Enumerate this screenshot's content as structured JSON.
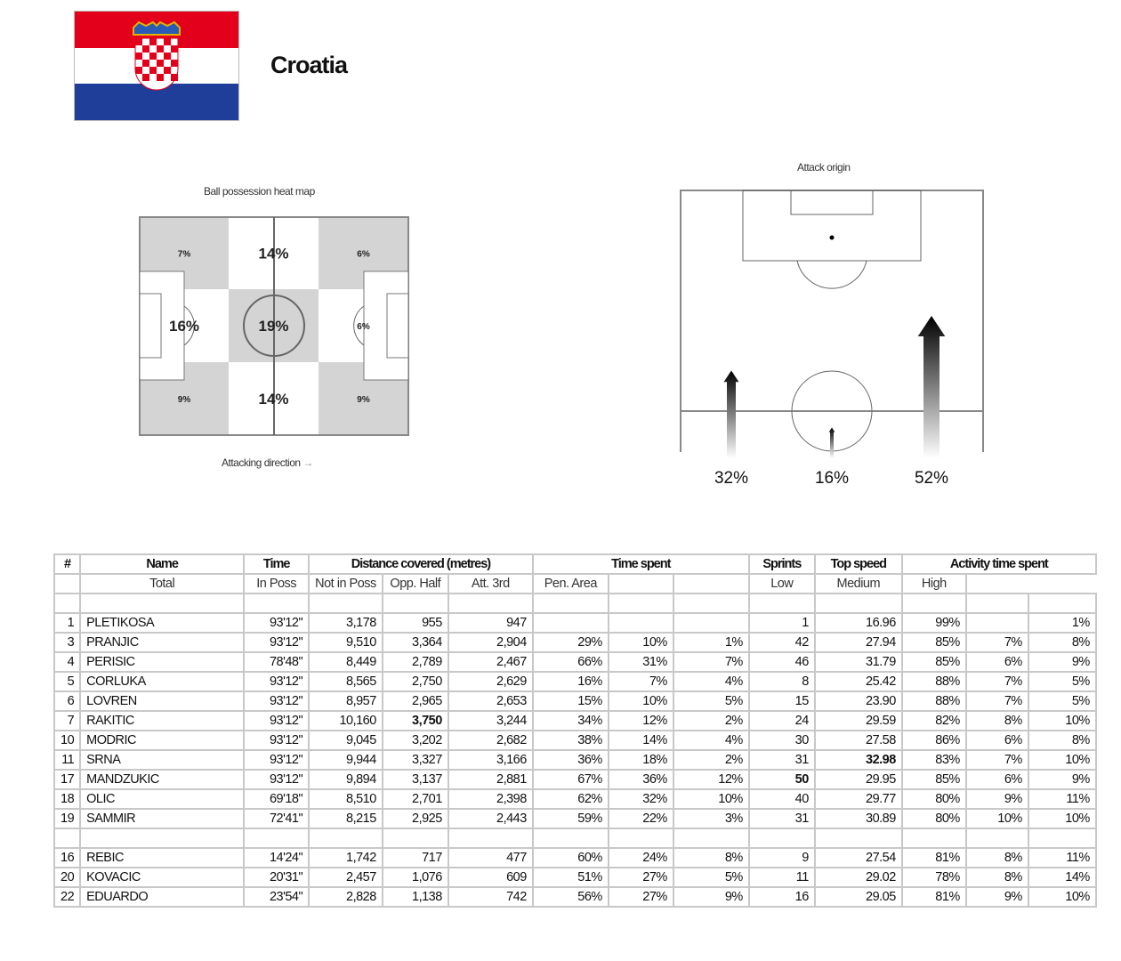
{
  "header": {
    "country": "Croatia",
    "flag_colors": [
      "#e2001a",
      "#ffffff",
      "#1f3e9a"
    ]
  },
  "heatmap": {
    "title": "Ball possession heat map",
    "cells": [
      "7%",
      "14%",
      "6%",
      "16%",
      "19%",
      "6%",
      "9%",
      "14%",
      "9%"
    ],
    "footer": "Attacking direction",
    "arrow": "→"
  },
  "attack": {
    "title": "Attack origin",
    "labels": [
      "32%",
      "16%",
      "52%"
    ],
    "values": [
      32,
      16,
      52
    ]
  },
  "table": {
    "headers": {
      "num": "#",
      "name": "Name",
      "time": "Time",
      "distance": "Distance covered (metres)",
      "time_spent": "Time spent",
      "sprints": "Sprints",
      "top_speed": "Top speed",
      "activity": "Activity time spent"
    },
    "subheaders": [
      "Total",
      "In Poss",
      "Not in Poss",
      "Opp. Half",
      "Att. 3rd",
      "Pen. Area",
      "Low",
      "Medium",
      "High"
    ],
    "rows": [
      [
        "1",
        "PLETIKOSA",
        "93'12\"",
        "3,178",
        "955",
        "947",
        "",
        "",
        "",
        "1",
        "16.96",
        "99%",
        "",
        "1%"
      ],
      [
        "3",
        "PRANJIC",
        "93'12\"",
        "9,510",
        "3,364",
        "2,904",
        "29%",
        "10%",
        "1%",
        "42",
        "27.94",
        "85%",
        "7%",
        "8%"
      ],
      [
        "4",
        "PERISIC",
        "78'48\"",
        "8,449",
        "2,789",
        "2,467",
        "66%",
        "31%",
        "7%",
        "46",
        "31.79",
        "85%",
        "6%",
        "9%"
      ],
      [
        "5",
        "CORLUKA",
        "93'12\"",
        "8,565",
        "2,750",
        "2,629",
        "16%",
        "7%",
        "4%",
        "8",
        "25.42",
        "88%",
        "7%",
        "5%"
      ],
      [
        "6",
        "LOVREN",
        "93'12\"",
        "8,957",
        "2,965",
        "2,653",
        "15%",
        "10%",
        "5%",
        "15",
        "23.90",
        "88%",
        "7%",
        "5%"
      ],
      [
        "7",
        "RAKITIC",
        "93'12\"",
        "10,160",
        "3,750",
        "3,244",
        "34%",
        "12%",
        "2%",
        "24",
        "29.59",
        "82%",
        "8%",
        "10%"
      ],
      [
        "10",
        "MODRIC",
        "93'12\"",
        "9,045",
        "3,202",
        "2,682",
        "38%",
        "14%",
        "4%",
        "30",
        "27.58",
        "86%",
        "6%",
        "8%"
      ],
      [
        "11",
        "SRNA",
        "93'12\"",
        "9,944",
        "3,327",
        "3,166",
        "36%",
        "18%",
        "2%",
        "31",
        "32.98",
        "83%",
        "7%",
        "10%"
      ],
      [
        "17",
        "MANDZUKIC",
        "93'12\"",
        "9,894",
        "3,137",
        "2,881",
        "67%",
        "36%",
        "12%",
        "50",
        "29.95",
        "85%",
        "6%",
        "9%"
      ],
      [
        "18",
        "OLIC",
        "69'18\"",
        "8,510",
        "2,701",
        "2,398",
        "62%",
        "32%",
        "10%",
        "40",
        "29.77",
        "80%",
        "9%",
        "11%"
      ],
      [
        "19",
        "SAMMIR",
        "72'41\"",
        "8,215",
        "2,925",
        "2,443",
        "59%",
        "22%",
        "3%",
        "31",
        "30.89",
        "80%",
        "10%",
        "10%"
      ]
    ],
    "subs": [
      [
        "16",
        "REBIC",
        "14'24\"",
        "1,742",
        "717",
        "477",
        "60%",
        "24%",
        "8%",
        "9",
        "27.54",
        "81%",
        "8%",
        "11%"
      ],
      [
        "20",
        "KOVACIC",
        "20'31\"",
        "2,457",
        "1,076",
        "609",
        "51%",
        "27%",
        "5%",
        "11",
        "29.02",
        "78%",
        "8%",
        "14%"
      ],
      [
        "22",
        "EDUARDO",
        "23'54\"",
        "2,828",
        "1,138",
        "742",
        "56%",
        "27%",
        "9%",
        "16",
        "29.05",
        "81%",
        "9%",
        "10%"
      ]
    ]
  }
}
